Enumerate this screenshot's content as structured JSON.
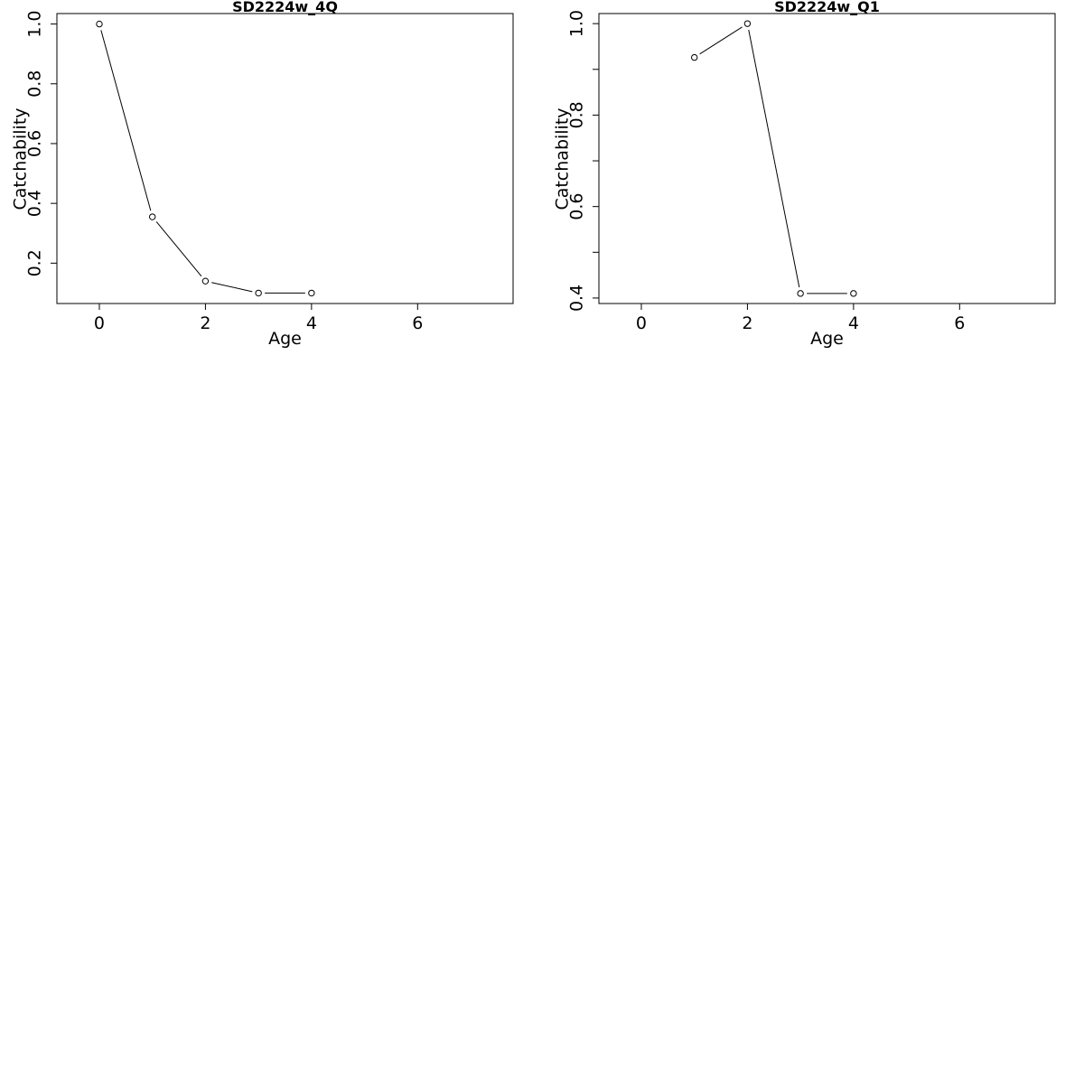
{
  "chart_data": [
    {
      "type": "line",
      "title": "SD2224w_4Q",
      "xlabel": "Age",
      "ylabel": "Catchability",
      "x": [
        0,
        1,
        2,
        3,
        4
      ],
      "y": [
        1.0,
        0.355,
        0.14,
        0.1,
        0.1
      ],
      "xlim": [
        -0.8,
        7.8
      ],
      "ylim": [
        0.065,
        1.035
      ],
      "xticks": [
        0,
        2,
        4,
        6
      ],
      "xtick_labels": [
        "0",
        "2",
        "4",
        "6"
      ],
      "yticks": [
        0.2,
        0.4,
        0.6,
        0.8,
        1.0
      ],
      "ytick_labels": [
        "0.2",
        "0.4",
        "0.6",
        "0.8",
        "1.0"
      ],
      "grid": false
    },
    {
      "type": "line",
      "title": "SD2224w_Q1",
      "xlabel": "Age",
      "ylabel": "Catchability",
      "x": [
        1,
        2,
        3,
        4
      ],
      "y": [
        0.926,
        1.0,
        0.41,
        0.41
      ],
      "xlim": [
        -0.8,
        7.8
      ],
      "ylim": [
        0.388,
        1.022
      ],
      "xticks": [
        0,
        2,
        4,
        6
      ],
      "xtick_labels": [
        "0",
        "2",
        "4",
        "6"
      ],
      "yticks": [
        0.4,
        0.5,
        0.6,
        0.7,
        0.8,
        0.9,
        1.0
      ],
      "ytick_labels": [
        "0.4",
        "",
        "0.6",
        "",
        "0.8",
        "",
        "1.0"
      ],
      "grid": false
    }
  ]
}
